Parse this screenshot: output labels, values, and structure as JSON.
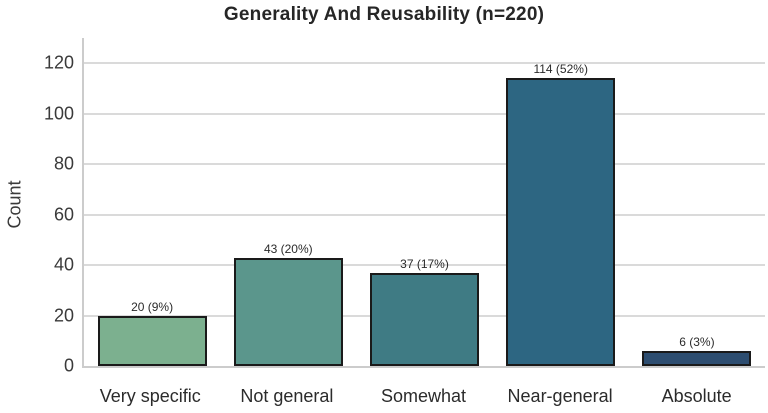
{
  "chart_data": {
    "type": "bar",
    "title": "Generality And Reusability (n=220)",
    "xlabel": "",
    "ylabel": "Count",
    "categories": [
      "Very specific",
      "Not general",
      "Somewhat",
      "Near-general",
      "Absolute"
    ],
    "values": [
      20,
      43,
      37,
      114,
      6
    ],
    "value_labels": [
      "20 (9%)",
      "43 (20%)",
      "37 (17%)",
      "114 (52%)",
      "6 (3%)"
    ],
    "percentages": [
      9,
      20,
      17,
      52,
      3
    ],
    "n_total": 220,
    "yticks": [
      0,
      20,
      40,
      60,
      80,
      100,
      120
    ],
    "ylim": [
      0,
      130
    ],
    "grid": "horizontal",
    "legend": "none",
    "bar_colors": [
      "#7cb08f",
      "#5b968c",
      "#3f7b84",
      "#2d6682",
      "#2d4d70"
    ],
    "bar_edge_color": "#1a1a1a",
    "grid_color": "#dadada",
    "axis_color": "#cccccc"
  }
}
